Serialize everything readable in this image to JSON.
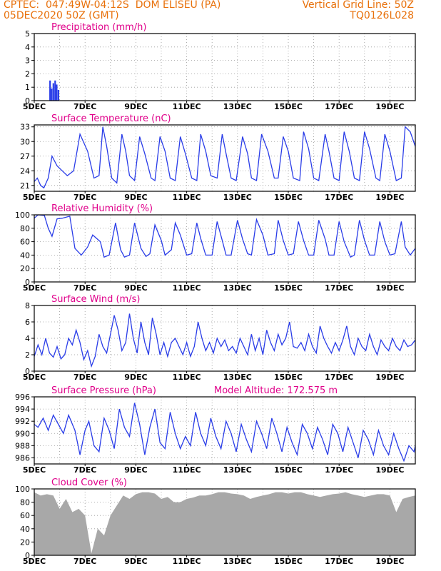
{
  "header": {
    "line1_left": "CPTEC:  047:49W-04:12S  DOM ELISEU (PA)",
    "line1_right": "Vertical Grid Line: 50Z",
    "line2_left": "05DEC2020 50Z (GMT)",
    "line2_right": "TQ0126L028"
  },
  "colors": {
    "header": "#e8700a",
    "title": "#e0008a",
    "line": "#2a3de8",
    "cloud": "#a8a8a8",
    "axis": "#000000"
  },
  "x_labels": [
    "5DEC",
    "7DEC",
    "9DEC",
    "11DEC",
    "13DEC",
    "15DEC",
    "17DEC",
    "19DEC"
  ],
  "chart_data": [
    {
      "id": "precip",
      "type": "bar",
      "title": "Precipitation (mm/h)",
      "x_unit": "days since 05DEC 00Z",
      "xlim": [
        0,
        15
      ],
      "ylim": [
        0,
        5
      ],
      "yticks": [
        0,
        1,
        2,
        3,
        4,
        5
      ],
      "x": [
        0.62,
        0.68,
        0.75,
        0.82,
        0.88,
        0.95
      ],
      "values": [
        1.5,
        0.9,
        1.3,
        1.5,
        1.2,
        0.8
      ]
    },
    {
      "id": "temp",
      "type": "line",
      "title": "Surface Temperature (nC)",
      "xlim": [
        0,
        15
      ],
      "ylim": [
        19.8,
        33.4
      ],
      "yticks": [
        21,
        24,
        27,
        30,
        33
      ],
      "x": [
        0.0,
        0.12,
        0.25,
        0.38,
        0.55,
        0.7,
        0.9,
        1.1,
        1.3,
        1.55,
        1.8,
        2.1,
        2.35,
        2.55,
        2.7,
        2.85,
        3.05,
        3.25,
        3.45,
        3.6,
        3.75,
        3.95,
        4.15,
        4.35,
        4.6,
        4.75,
        4.95,
        5.15,
        5.35,
        5.55,
        5.75,
        5.95,
        6.2,
        6.4,
        6.55,
        6.75,
        6.95,
        7.2,
        7.4,
        7.55,
        7.75,
        7.95,
        8.2,
        8.4,
        8.55,
        8.75,
        8.95,
        9.2,
        9.45,
        9.6,
        9.8,
        10.0,
        10.2,
        10.45,
        10.6,
        10.8,
        11.0,
        11.2,
        11.45,
        11.6,
        11.8,
        12.0,
        12.2,
        12.4,
        12.6,
        12.8,
        13.0,
        13.2,
        13.45,
        13.6,
        13.8,
        14.0,
        14.25,
        14.45,
        14.6,
        14.8,
        15.0
      ],
      "values": [
        21.8,
        22.5,
        21.0,
        20.5,
        22.5,
        27.0,
        25.0,
        24.0,
        23.0,
        24.0,
        31.5,
        28.0,
        22.5,
        23.0,
        33.0,
        29.0,
        22.5,
        21.5,
        31.5,
        28.0,
        23.0,
        22.0,
        31.0,
        27.5,
        22.5,
        22.0,
        31.0,
        28.0,
        22.5,
        22.0,
        31.0,
        27.5,
        22.5,
        22.0,
        31.5,
        28.0,
        23.0,
        22.5,
        31.5,
        27.5,
        22.5,
        22.0,
        31.0,
        27.5,
        22.5,
        22.0,
        31.5,
        28.0,
        22.5,
        22.5,
        31.0,
        28.0,
        22.5,
        22.0,
        32.0,
        28.5,
        22.5,
        22.0,
        31.5,
        28.0,
        22.5,
        22.0,
        32.0,
        28.0,
        22.5,
        22.0,
        32.0,
        28.5,
        22.5,
        22.0,
        31.5,
        28.0,
        22.0,
        22.5,
        33.0,
        32.0,
        29.0
      ]
    },
    {
      "id": "rh",
      "type": "line",
      "title": "Relative Humidity (%)",
      "xlim": [
        0,
        15
      ],
      "ylim": [
        0,
        100
      ],
      "yticks": [
        0,
        20,
        40,
        60,
        80,
        100
      ],
      "x": [
        0.0,
        0.15,
        0.4,
        0.55,
        0.7,
        0.9,
        1.1,
        1.4,
        1.6,
        1.85,
        2.1,
        2.3,
        2.6,
        2.75,
        2.95,
        3.2,
        3.4,
        3.55,
        3.75,
        3.95,
        4.2,
        4.4,
        4.55,
        4.75,
        5.0,
        5.15,
        5.4,
        5.55,
        5.75,
        6.0,
        6.2,
        6.4,
        6.55,
        6.75,
        7.0,
        7.2,
        7.4,
        7.55,
        7.75,
        8.0,
        8.2,
        8.4,
        8.55,
        8.75,
        9.0,
        9.2,
        9.45,
        9.6,
        9.8,
        10.0,
        10.2,
        10.4,
        10.6,
        10.8,
        11.0,
        11.2,
        11.45,
        11.6,
        11.8,
        12.0,
        12.2,
        12.45,
        12.6,
        12.8,
        13.0,
        13.2,
        13.4,
        13.6,
        13.8,
        14.0,
        14.2,
        14.45,
        14.6,
        14.8,
        15.0
      ],
      "values": [
        95,
        100,
        99,
        80,
        68,
        94,
        95,
        98,
        50,
        40,
        52,
        70,
        60,
        37,
        40,
        88,
        48,
        37,
        40,
        88,
        50,
        38,
        42,
        85,
        62,
        40,
        48,
        88,
        70,
        40,
        42,
        88,
        65,
        40,
        40,
        90,
        62,
        40,
        40,
        92,
        64,
        42,
        40,
        93,
        70,
        40,
        42,
        92,
        62,
        40,
        42,
        90,
        62,
        40,
        40,
        92,
        64,
        40,
        40,
        90,
        60,
        37,
        40,
        92,
        62,
        40,
        40,
        90,
        60,
        40,
        42,
        90,
        52,
        40,
        50
      ]
    },
    {
      "id": "wind",
      "type": "line",
      "title": "Surface Wind (m/s)",
      "xlim": [
        0,
        15
      ],
      "ylim": [
        0,
        8
      ],
      "yticks": [
        0,
        2,
        4,
        6,
        8
      ],
      "x": [
        0.0,
        0.15,
        0.3,
        0.45,
        0.6,
        0.75,
        0.9,
        1.05,
        1.2,
        1.35,
        1.5,
        1.65,
        1.8,
        1.95,
        2.1,
        2.25,
        2.4,
        2.55,
        2.7,
        2.85,
        3.0,
        3.15,
        3.3,
        3.45,
        3.6,
        3.75,
        3.9,
        4.05,
        4.2,
        4.35,
        4.5,
        4.65,
        4.8,
        4.95,
        5.1,
        5.25,
        5.4,
        5.55,
        5.7,
        5.85,
        6.0,
        6.15,
        6.3,
        6.45,
        6.6,
        6.75,
        6.9,
        7.05,
        7.2,
        7.35,
        7.5,
        7.65,
        7.8,
        7.95,
        8.1,
        8.25,
        8.4,
        8.55,
        8.7,
        8.85,
        9.0,
        9.15,
        9.3,
        9.45,
        9.6,
        9.75,
        9.9,
        10.05,
        10.2,
        10.35,
        10.5,
        10.65,
        10.8,
        10.95,
        11.1,
        11.25,
        11.4,
        11.55,
        11.7,
        11.85,
        12.0,
        12.15,
        12.3,
        12.45,
        12.6,
        12.75,
        12.9,
        13.05,
        13.2,
        13.35,
        13.5,
        13.65,
        13.8,
        13.95,
        14.1,
        14.25,
        14.4,
        14.55,
        14.7,
        14.85,
        15.0
      ],
      "values": [
        1.8,
        3.2,
        2.0,
        4.0,
        2.2,
        1.7,
        3.0,
        1.5,
        2.0,
        4.0,
        3.2,
        5.0,
        3.5,
        1.4,
        2.5,
        0.6,
        1.8,
        4.5,
        3.0,
        2.2,
        4.5,
        6.8,
        5.0,
        2.5,
        3.5,
        7.0,
        4.0,
        2.2,
        6.0,
        3.5,
        2.0,
        6.5,
        4.5,
        2.0,
        3.5,
        1.8,
        3.5,
        4.0,
        3.0,
        2.0,
        3.5,
        1.8,
        3.0,
        6.0,
        4.0,
        2.5,
        3.5,
        2.2,
        4.0,
        3.0,
        3.8,
        2.5,
        3.0,
        2.2,
        4.0,
        3.0,
        2.0,
        4.5,
        2.5,
        4.0,
        2.0,
        5.0,
        3.5,
        2.5,
        4.5,
        3.2,
        4.0,
        6.0,
        3.0,
        2.8,
        3.5,
        2.5,
        4.5,
        3.0,
        2.2,
        5.5,
        4.0,
        3.0,
        2.2,
        3.5,
        2.5,
        3.8,
        5.5,
        3.0,
        2.0,
        4.0,
        3.0,
        2.5,
        4.5,
        3.0,
        2.0,
        3.8,
        3.0,
        2.5,
        4.0,
        3.0,
        2.5,
        3.8,
        3.0,
        3.2,
        3.8
      ]
    },
    {
      "id": "pressure",
      "type": "line",
      "title": "Surface Pressure (hPa)",
      "annotation": "Model Altitude: 172.575 m",
      "xlim": [
        0,
        15
      ],
      "ylim": [
        985,
        996
      ],
      "yticks": [
        986,
        988,
        990,
        992,
        994,
        996
      ],
      "x": [
        0.0,
        0.15,
        0.35,
        0.55,
        0.75,
        0.95,
        1.15,
        1.35,
        1.6,
        1.8,
        2.0,
        2.15,
        2.35,
        2.55,
        2.75,
        2.95,
        3.15,
        3.35,
        3.55,
        3.75,
        3.95,
        4.15,
        4.35,
        4.55,
        4.75,
        4.95,
        5.15,
        5.35,
        5.55,
        5.75,
        5.95,
        6.15,
        6.35,
        6.55,
        6.75,
        6.95,
        7.15,
        7.35,
        7.55,
        7.75,
        7.95,
        8.15,
        8.35,
        8.55,
        8.75,
        8.95,
        9.15,
        9.35,
        9.55,
        9.75,
        9.95,
        10.15,
        10.35,
        10.55,
        10.75,
        10.95,
        11.15,
        11.35,
        11.55,
        11.75,
        11.95,
        12.15,
        12.35,
        12.55,
        12.75,
        12.95,
        13.15,
        13.35,
        13.55,
        13.75,
        13.95,
        14.15,
        14.35,
        14.55,
        14.75,
        14.95,
        15.0
      ],
      "values": [
        991.5,
        991.0,
        992.5,
        990.5,
        993.0,
        991.5,
        990.0,
        993.0,
        990.5,
        986.5,
        990.5,
        992.0,
        988.0,
        987.0,
        992.5,
        990.5,
        987.5,
        994.0,
        991.0,
        989.5,
        995.0,
        991.5,
        986.5,
        991.0,
        994.0,
        988.5,
        987.5,
        993.5,
        990.0,
        987.5,
        989.5,
        988.0,
        993.5,
        990.0,
        988.0,
        992.5,
        989.5,
        987.5,
        992.0,
        990.0,
        987.0,
        991.5,
        989.0,
        987.0,
        992.0,
        990.0,
        987.5,
        992.5,
        990.0,
        987.0,
        991.0,
        988.5,
        986.5,
        991.5,
        990.0,
        987.5,
        991.0,
        989.0,
        986.5,
        991.5,
        990.0,
        987.0,
        991.0,
        988.5,
        986.0,
        990.5,
        989.0,
        986.5,
        990.5,
        988.0,
        986.5,
        990.0,
        987.5,
        985.5,
        988.0,
        987.0,
        988.0
      ]
    },
    {
      "id": "cloud",
      "type": "area",
      "title": "Cloud Cover (%)",
      "xlim": [
        0,
        15
      ],
      "ylim": [
        0,
        100
      ],
      "yticks": [
        0,
        20,
        40,
        60,
        80,
        100
      ],
      "x": [
        0.0,
        0.25,
        0.5,
        0.75,
        1.0,
        1.25,
        1.5,
        1.75,
        2.0,
        2.25,
        2.5,
        2.75,
        3.0,
        3.25,
        3.5,
        3.75,
        4.0,
        4.25,
        4.5,
        4.75,
        5.0,
        5.25,
        5.5,
        5.75,
        6.0,
        6.25,
        6.5,
        6.75,
        7.0,
        7.25,
        7.5,
        7.75,
        8.0,
        8.25,
        8.5,
        8.75,
        9.0,
        9.25,
        9.5,
        9.75,
        10.0,
        10.25,
        10.5,
        10.75,
        11.0,
        11.25,
        11.5,
        11.75,
        12.0,
        12.25,
        12.5,
        12.75,
        13.0,
        13.25,
        13.5,
        13.75,
        14.0,
        14.25,
        14.5,
        14.75,
        15.0
      ],
      "values": [
        95,
        90,
        92,
        90,
        70,
        85,
        65,
        70,
        60,
        3,
        40,
        30,
        60,
        75,
        90,
        85,
        92,
        95,
        95,
        93,
        85,
        88,
        80,
        80,
        85,
        87,
        90,
        90,
        92,
        95,
        95,
        93,
        92,
        90,
        85,
        88,
        90,
        92,
        95,
        95,
        93,
        95,
        95,
        92,
        90,
        88,
        90,
        92,
        93,
        95,
        92,
        90,
        88,
        90,
        92,
        92,
        90,
        65,
        85,
        88,
        90
      ]
    }
  ]
}
